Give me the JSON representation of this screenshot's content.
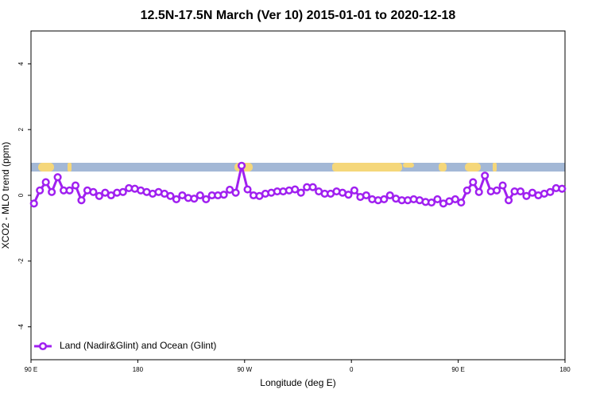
{
  "chart_data": {
    "type": "line",
    "title": "12.5N-17.5N March (Ver 10)   2015-01-01 to 2020-12-18",
    "xlabel": "Longitude (deg E)",
    "ylabel": "XCO2 - MLO trend (ppm)",
    "xlim": [
      90,
      540
    ],
    "xticks": [
      {
        "value": 90,
        "label": "90 E"
      },
      180,
      {
        "value": 270,
        "label": "90 W"
      },
      {
        "value": 360,
        "label": "0"
      },
      {
        "value": 450,
        "label": "90 E"
      },
      {
        "value": 540,
        "label": "180"
      }
    ],
    "ylim": [
      -5,
      5
    ],
    "yticks": [
      -4,
      -2,
      0,
      2,
      4
    ],
    "legend": "bottom-left",
    "x": [
      92.5,
      97.5,
      102.5,
      107.5,
      112.5,
      117.5,
      122.5,
      127.5,
      132.5,
      137.5,
      142.5,
      147.5,
      152.5,
      157.5,
      162.5,
      167.5,
      172.5,
      177.5,
      182.5,
      187.5,
      192.5,
      197.5,
      202.5,
      207.5,
      212.5,
      217.5,
      222.5,
      227.5,
      232.5,
      237.5,
      242.5,
      247.5,
      252.5,
      257.5,
      262.5,
      267.5,
      272.5,
      277.5,
      282.5,
      287.5,
      292.5,
      297.5,
      302.5,
      307.5,
      312.5,
      317.5,
      322.5,
      327.5,
      332.5,
      337.5,
      342.5,
      347.5,
      352.5,
      357.5,
      362.5,
      367.5,
      372.5,
      377.5,
      382.5,
      387.5,
      392.5,
      397.5,
      402.5,
      407.5,
      412.5,
      417.5,
      422.5,
      427.5,
      432.5,
      437.5,
      442.5,
      447.5,
      452.5,
      457.5,
      462.5,
      467.5,
      472.5,
      477.5,
      482.5,
      487.5,
      492.5,
      497.5,
      502.5,
      507.5,
      512.5,
      517.5,
      522.5,
      527.5,
      532.5,
      537.5
    ],
    "series": [
      {
        "name": "Land (Nadir&Glint) and Ocean (Glint)",
        "color": "#a020f0",
        "values": [
          -0.25,
          0.15,
          0.4,
          0.1,
          0.55,
          0.15,
          0.15,
          0.3,
          -0.15,
          0.15,
          0.1,
          -0.02,
          0.08,
          0.0,
          0.08,
          0.1,
          0.22,
          0.2,
          0.15,
          0.1,
          0.05,
          0.1,
          0.05,
          -0.02,
          -0.12,
          0.0,
          -0.08,
          -0.1,
          0.0,
          -0.12,
          0.0,
          0.0,
          0.02,
          0.17,
          0.08,
          0.9,
          0.18,
          0.0,
          -0.02,
          0.05,
          0.08,
          0.12,
          0.12,
          0.15,
          0.18,
          0.08,
          0.25,
          0.25,
          0.12,
          0.05,
          0.05,
          0.12,
          0.08,
          0.02,
          0.15,
          -0.05,
          0.0,
          -0.12,
          -0.15,
          -0.12,
          0.0,
          -0.1,
          -0.15,
          -0.15,
          -0.12,
          -0.15,
          -0.2,
          -0.22,
          -0.12,
          -0.25,
          -0.18,
          -0.12,
          -0.22,
          0.15,
          0.4,
          0.1,
          0.6,
          0.12,
          0.15,
          0.3,
          -0.15,
          0.12,
          0.12,
          -0.02,
          0.08,
          0.0,
          0.05,
          0.1,
          0.22,
          0.2
        ]
      }
    ]
  }
}
